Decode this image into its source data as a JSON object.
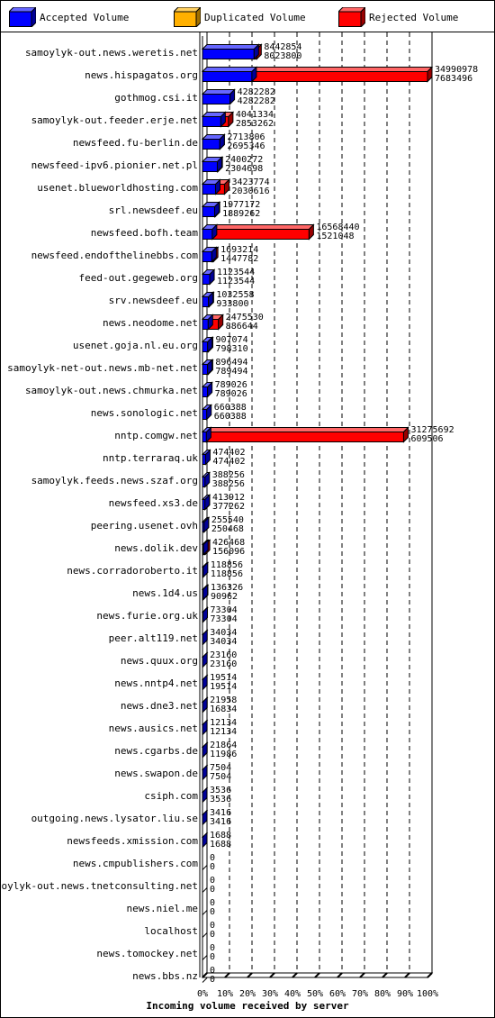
{
  "chart_data": {
    "type": "bar",
    "orientation": "horizontal",
    "stacked": true,
    "xlabel": "Incoming volume received by server",
    "xlim": [
      0,
      100
    ],
    "x_unit": "%",
    "x_ticks": [
      "0%",
      "10%",
      "20%",
      "30%",
      "40%",
      "50%",
      "60%",
      "70%",
      "80%",
      "90%",
      "100%"
    ],
    "grid": "vertical dashed",
    "legend_position": "top",
    "series": [
      {
        "name": "Accepted Volume",
        "color": "#0000ff"
      },
      {
        "name": "Duplicated Volume",
        "color": "#ffb000"
      },
      {
        "name": "Rejected Volume",
        "color": "#ff0000"
      }
    ],
    "categories": [
      "samoylyk-out.news.weretis.net",
      "news.hispagatos.org",
      "gothmog.csi.it",
      "samoylyk-out.feeder.erje.net",
      "newsfeed.fu-berlin.de",
      "newsfeed-ipv6.pionier.net.pl",
      "usenet.blueworldhosting.com",
      "srl.newsdeef.eu",
      "newsfeed.bofh.team",
      "newsfeed.endofthelinebbs.com",
      "feed-out.gegeweb.org",
      "srv.newsdeef.eu",
      "news.neodome.net",
      "usenet.goja.nl.eu.org",
      "samoylyk-net-out.news.mb-net.net",
      "samoylyk-out.news.chmurka.net",
      "news.sonologic.net",
      "nntp.comgw.net",
      "nntp.terraraq.uk",
      "samoylyk.feeds.news.szaf.org",
      "newsfeed.xs3.de",
      "peering.usenet.ovh",
      "news.dolik.dev",
      "news.corradoroberto.it",
      "news.1d4.us",
      "news.furie.org.uk",
      "peer.alt119.net",
      "news.quux.org",
      "news.nntp4.net",
      "news.dne3.net",
      "news.ausics.net",
      "news.cgarbs.de",
      "news.swapon.de",
      "csiph.com",
      "outgoing.news.lysator.liu.se",
      "newsfeeds.xmission.com",
      "news.cmpublishers.com",
      "samoylyk-out.news.tnetconsulting.net",
      "news.niel.me",
      "localhost",
      "news.tomockey.net",
      "news.bbs.nz"
    ],
    "total": [
      8442854,
      34990978,
      4282282,
      4041334,
      2713806,
      2400272,
      3423774,
      1977172,
      16568440,
      1693214,
      1123544,
      1032558,
      2475530,
      907074,
      896494,
      789026,
      660388,
      31275692,
      474402,
      388256,
      413912,
      255540,
      426468,
      118856,
      136326,
      73304,
      34034,
      23160,
      19514,
      21958,
      12134,
      21864,
      7504,
      3536,
      3416,
      1688,
      0,
      0,
      0,
      0,
      0,
      0
    ],
    "accepted": [
      8023800,
      7683496,
      4282282,
      2853262,
      2695346,
      2304698,
      2030616,
      1889262,
      1521048,
      1447782,
      1123544,
      933800,
      886644,
      798310,
      789494,
      789026,
      660388,
      609506,
      474402,
      388256,
      377262,
      250468,
      156096,
      118856,
      90962,
      73304,
      34034,
      23160,
      19514,
      16834,
      12134,
      11986,
      7504,
      3536,
      3416,
      1688,
      0,
      0,
      0,
      0,
      0,
      0
    ]
  }
}
